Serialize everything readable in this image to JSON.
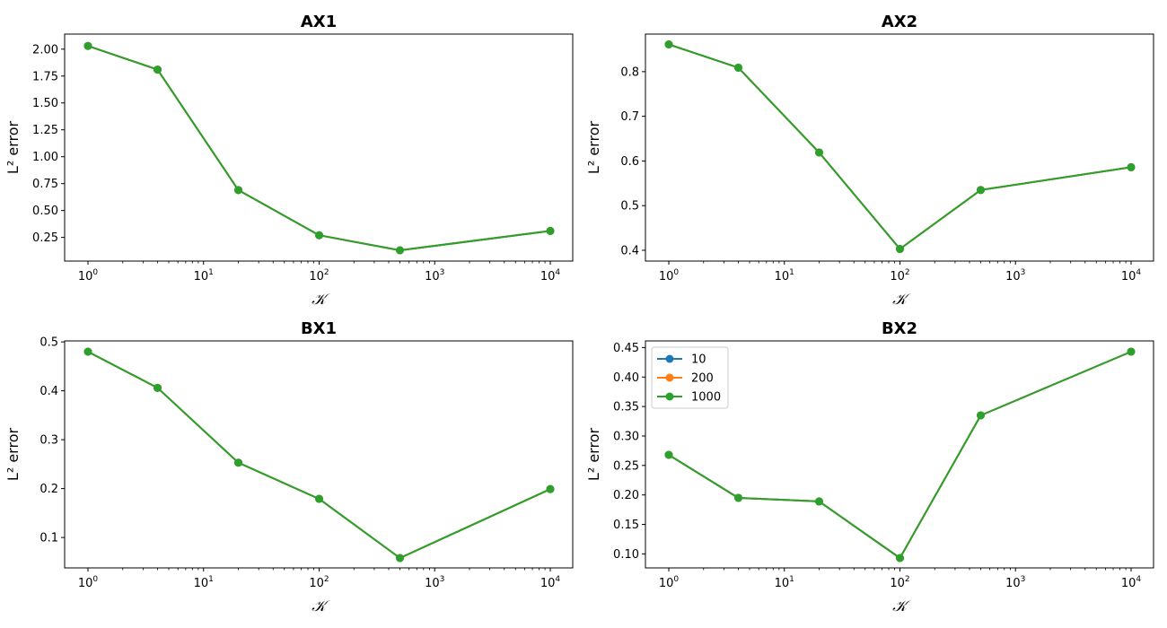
{
  "chart_data": [
    {
      "type": "line",
      "title": "AX1",
      "xlabel": "𝒦",
      "ylabel": "L² error",
      "x_scale": "log",
      "x": [
        1,
        4,
        20,
        100,
        500,
        10000
      ],
      "xlim": [
        1,
        10000
      ],
      "x_ticks": [
        {
          "base": "10",
          "exp": "0",
          "value": 1
        },
        {
          "base": "10",
          "exp": "1",
          "value": 10
        },
        {
          "base": "10",
          "exp": "2",
          "value": 100
        },
        {
          "base": "10",
          "exp": "3",
          "value": 1000
        },
        {
          "base": "10",
          "exp": "4",
          "value": 10000
        }
      ],
      "ylim": [
        0.13,
        2.04
      ],
      "y_ticks": [
        "0.25",
        "0.50",
        "0.75",
        "1.00",
        "1.25",
        "1.50",
        "1.75",
        "2.00"
      ],
      "series": [
        {
          "name": "10",
          "color": "#1f77b4",
          "values": [
            2.03,
            1.81,
            0.69,
            0.27,
            0.13,
            0.31
          ]
        },
        {
          "name": "200",
          "color": "#ff7f0e",
          "values": [
            2.03,
            1.81,
            0.69,
            0.27,
            0.13,
            0.31
          ]
        },
        {
          "name": "1000",
          "color": "#2ca02c",
          "values": [
            2.03,
            1.81,
            0.69,
            0.27,
            0.13,
            0.31
          ]
        }
      ],
      "legend": null,
      "grid": false
    },
    {
      "type": "line",
      "title": "AX2",
      "xlabel": "𝒦",
      "ylabel": "L² error",
      "x_scale": "log",
      "x": [
        1,
        4,
        20,
        100,
        500,
        10000
      ],
      "xlim": [
        1,
        10000
      ],
      "x_ticks": [
        {
          "base": "10",
          "exp": "0",
          "value": 1
        },
        {
          "base": "10",
          "exp": "1",
          "value": 10
        },
        {
          "base": "10",
          "exp": "2",
          "value": 100
        },
        {
          "base": "10",
          "exp": "3",
          "value": 1000
        },
        {
          "base": "10",
          "exp": "4",
          "value": 10000
        }
      ],
      "ylim": [
        0.4,
        0.86
      ],
      "y_ticks": [
        "0.4",
        "0.5",
        "0.6",
        "0.7",
        "0.8"
      ],
      "series": [
        {
          "name": "10",
          "color": "#1f77b4",
          "values": [
            0.861,
            0.809,
            0.619,
            0.403,
            0.535,
            0.586
          ]
        },
        {
          "name": "200",
          "color": "#ff7f0e",
          "values": [
            0.861,
            0.809,
            0.619,
            0.403,
            0.535,
            0.586
          ]
        },
        {
          "name": "1000",
          "color": "#2ca02c",
          "values": [
            0.861,
            0.809,
            0.619,
            0.403,
            0.535,
            0.586
          ]
        }
      ],
      "legend": null,
      "grid": false
    },
    {
      "type": "line",
      "title": "BX1",
      "xlabel": "𝒦",
      "ylabel": "L² error",
      "x_scale": "log",
      "x": [
        1,
        4,
        20,
        100,
        500,
        10000
      ],
      "xlim": [
        1,
        10000
      ],
      "x_ticks": [
        {
          "base": "10",
          "exp": "0",
          "value": 1
        },
        {
          "base": "10",
          "exp": "1",
          "value": 10
        },
        {
          "base": "10",
          "exp": "2",
          "value": 100
        },
        {
          "base": "10",
          "exp": "3",
          "value": 1000
        },
        {
          "base": "10",
          "exp": "4",
          "value": 10000
        }
      ],
      "ylim": [
        0.058,
        0.48
      ],
      "y_ticks": [
        "0.1",
        "0.2",
        "0.3",
        "0.4",
        "0.5"
      ],
      "series": [
        {
          "name": "10",
          "color": "#1f77b4",
          "values": [
            0.48,
            0.406,
            0.253,
            0.179,
            0.058,
            0.199
          ]
        },
        {
          "name": "200",
          "color": "#ff7f0e",
          "values": [
            0.48,
            0.406,
            0.253,
            0.179,
            0.058,
            0.199
          ]
        },
        {
          "name": "1000",
          "color": "#2ca02c",
          "values": [
            0.48,
            0.406,
            0.253,
            0.179,
            0.058,
            0.199
          ]
        }
      ],
      "legend": null,
      "grid": false
    },
    {
      "type": "line",
      "title": "BX2",
      "xlabel": "𝒦",
      "ylabel": "L² error",
      "x_scale": "log",
      "x": [
        1,
        4,
        20,
        100,
        500,
        10000
      ],
      "xlim": [
        1,
        10000
      ],
      "x_ticks": [
        {
          "base": "10",
          "exp": "0",
          "value": 1
        },
        {
          "base": "10",
          "exp": "1",
          "value": 10
        },
        {
          "base": "10",
          "exp": "2",
          "value": 100
        },
        {
          "base": "10",
          "exp": "3",
          "value": 1000
        },
        {
          "base": "10",
          "exp": "4",
          "value": 10000
        }
      ],
      "ylim": [
        0.093,
        0.443
      ],
      "y_ticks": [
        "0.10",
        "0.15",
        "0.20",
        "0.25",
        "0.30",
        "0.35",
        "0.40",
        "0.45"
      ],
      "series": [
        {
          "name": "10",
          "color": "#1f77b4",
          "values": [
            0.268,
            0.195,
            0.189,
            0.093,
            0.335,
            0.443
          ]
        },
        {
          "name": "200",
          "color": "#ff7f0e",
          "values": [
            0.268,
            0.195,
            0.189,
            0.093,
            0.335,
            0.443
          ]
        },
        {
          "name": "1000",
          "color": "#2ca02c",
          "values": [
            0.268,
            0.195,
            0.189,
            0.093,
            0.335,
            0.443
          ]
        }
      ],
      "legend": "upper-left",
      "grid": false
    }
  ]
}
